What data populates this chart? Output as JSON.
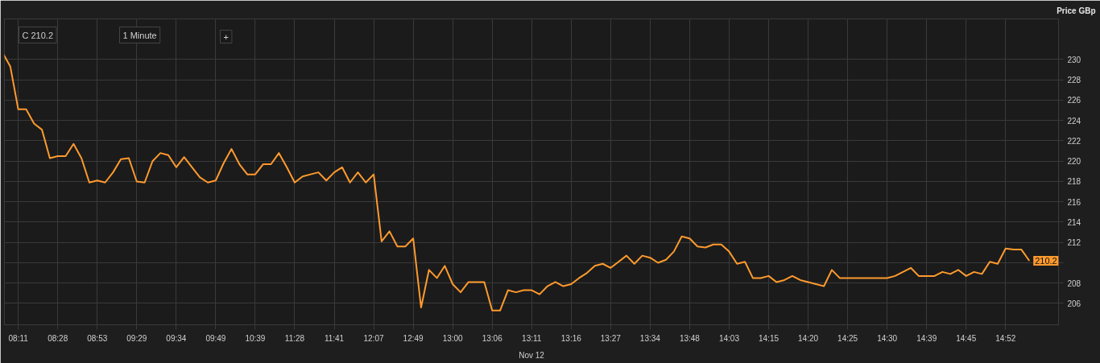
{
  "chart_data": {
    "type": "line",
    "ylabel": "Price GBp",
    "annotations": [
      "C 210.2",
      "1 Minute",
      "+",
      "Nov 12"
    ],
    "categories": [
      null,
      null,
      "08:11",
      null,
      null,
      null,
      null,
      "08:28",
      null,
      null,
      null,
      null,
      "08:53",
      null,
      null,
      null,
      null,
      "09:29",
      null,
      null,
      null,
      null,
      "09:34",
      null,
      null,
      null,
      null,
      "09:49",
      null,
      null,
      null,
      null,
      "10:39",
      null,
      null,
      null,
      null,
      "11:28",
      null,
      null,
      null,
      null,
      "11:41",
      null,
      null,
      null,
      null,
      "12:07",
      null,
      null,
      null,
      null,
      "12:49",
      null,
      null,
      null,
      null,
      "13:00",
      null,
      null,
      null,
      null,
      "13:06",
      null,
      null,
      null,
      null,
      "13:11",
      null,
      null,
      null,
      null,
      "13:16",
      null,
      null,
      null,
      null,
      "13:27",
      null,
      null,
      null,
      null,
      "13:34",
      null,
      null,
      null,
      null,
      "13:48",
      null,
      null,
      null,
      null,
      "14:03",
      null,
      null,
      null,
      null,
      "14:15",
      null,
      null,
      null,
      null,
      "14:20",
      null,
      null,
      null,
      null,
      "14:25",
      null,
      null,
      null,
      null,
      "14:30",
      null,
      null,
      null,
      null,
      "14:39",
      null,
      null,
      null,
      null,
      "14:45",
      null,
      null,
      null,
      null,
      "14:52",
      null,
      null,
      null
    ],
    "series": [
      {
        "color": "#ff9a2e",
        "values": [
          230.7,
          229.3,
          225.1,
          225.1,
          223.7,
          223.1,
          220.3,
          220.5,
          220.5,
          221.7,
          220.3,
          217.9,
          218.1,
          217.9,
          218.9,
          220.2,
          220.3,
          218.0,
          217.9,
          220.0,
          220.8,
          220.6,
          219.4,
          220.4,
          219.4,
          218.4,
          217.9,
          218.1,
          219.8,
          221.2,
          219.7,
          218.7,
          218.7,
          219.7,
          219.7,
          220.8,
          219.4,
          217.9,
          218.5,
          218.7,
          218.9,
          218.1,
          218.9,
          219.4,
          217.9,
          218.9,
          217.9,
          218.7,
          212.1,
          213.1,
          211.6,
          211.6,
          212.4,
          205.6,
          209.3,
          208.5,
          209.7,
          207.9,
          207.1,
          208.1,
          208.1,
          208.1,
          205.3,
          205.3,
          207.3,
          207.1,
          207.3,
          207.3,
          206.9,
          207.7,
          208.1,
          207.7,
          207.9,
          208.5,
          209.0,
          209.7,
          209.9,
          209.5,
          210.1,
          210.7,
          209.9,
          210.7,
          210.5,
          210.0,
          210.3,
          211.1,
          212.6,
          212.4,
          211.6,
          211.5,
          211.8,
          211.8,
          211.1,
          209.9,
          210.1,
          208.5,
          208.5,
          208.7,
          208.1,
          208.3,
          208.7,
          208.3,
          208.1,
          207.9,
          207.7,
          209.3,
          208.5,
          208.5,
          208.5,
          208.5,
          208.5,
          208.5,
          208.5,
          208.7,
          209.1,
          209.5,
          208.7,
          208.7,
          208.7,
          209.1,
          208.9,
          209.3,
          208.7,
          209.1,
          208.9,
          210.1,
          209.9,
          211.4,
          211.3,
          211.3,
          210.2
        ],
        "value_labels": [
          null,
          null,
          null,
          null,
          null,
          null,
          null,
          null,
          null,
          null,
          null,
          null,
          null,
          null,
          null,
          null,
          null,
          null,
          null,
          null,
          null,
          null,
          null,
          null,
          null,
          null,
          null,
          null,
          null,
          null,
          null,
          null,
          null,
          null,
          null,
          null,
          null,
          null,
          null,
          null,
          null,
          null,
          null,
          null,
          null,
          null,
          null,
          null,
          null,
          null,
          null,
          null,
          null,
          null,
          null,
          null,
          null,
          null,
          null,
          null,
          null,
          null,
          null,
          null,
          null,
          null,
          null,
          null,
          null,
          null,
          null,
          null,
          null,
          null,
          null,
          null,
          null,
          null,
          null,
          null,
          null,
          null,
          null,
          null,
          null,
          null,
          null,
          null,
          null,
          null,
          null,
          null,
          null,
          null,
          null,
          null,
          null,
          null,
          null,
          null,
          null,
          null,
          null,
          null,
          null,
          null,
          null,
          null,
          null,
          null,
          null,
          null,
          null,
          null,
          null,
          null,
          null,
          null,
          null,
          null,
          null,
          null,
          null,
          null,
          null,
          null,
          null,
          null,
          null,
          null,
          "210.2"
        ]
      }
    ],
    "ylim": [
      203.9,
      234
    ],
    "yticks": [
      206,
      208,
      {
        "value": 210,
        "label": null
      },
      212,
      214,
      216,
      218,
      220,
      222,
      224,
      226,
      228,
      230
    ],
    "grid": true,
    "marker": "none",
    "line_style": "solid"
  }
}
